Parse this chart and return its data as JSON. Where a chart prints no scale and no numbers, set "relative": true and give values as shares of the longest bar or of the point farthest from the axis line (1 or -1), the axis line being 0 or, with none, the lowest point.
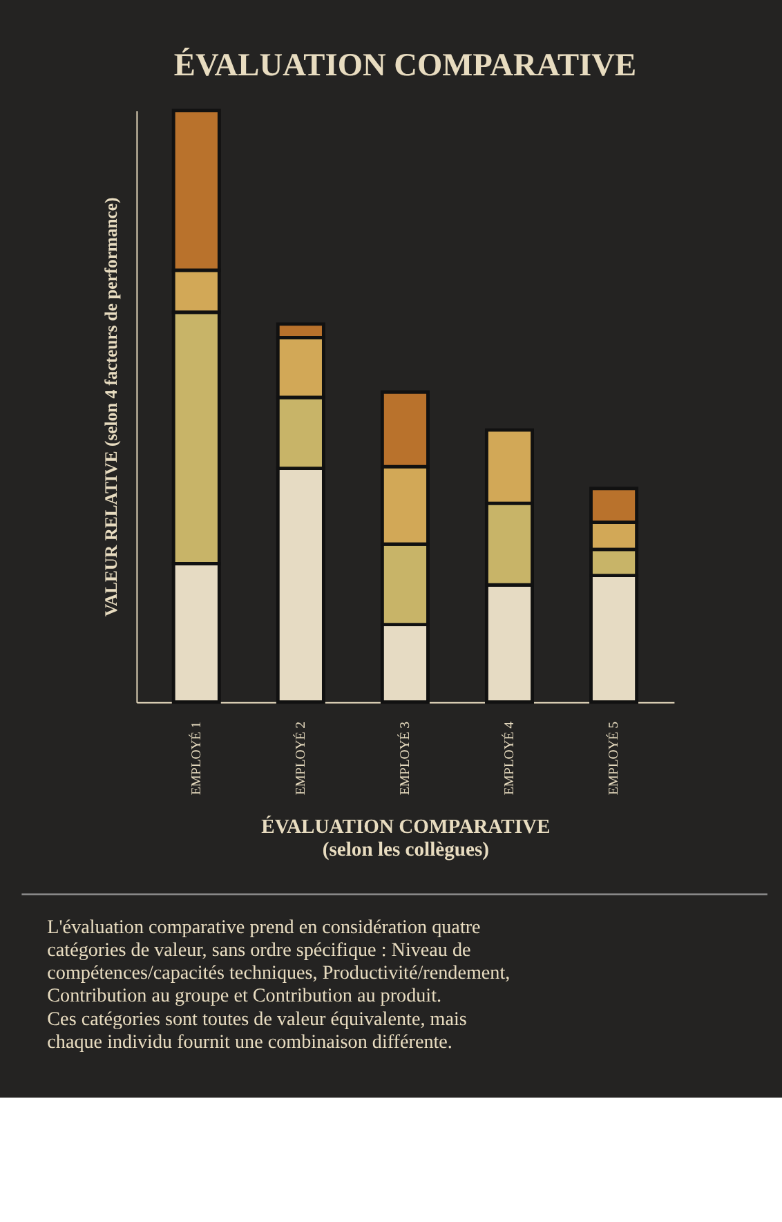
{
  "chart_data": {
    "type": "bar",
    "title": "ÉVALUATION COMPARATIVE",
    "xlabel": "ÉVALUATION COMPARATIVE\n(selon les collègues)",
    "ylabel": "VALEUR RELATIVE (selon 4 facteurs de performance)",
    "categories": [
      "EMPLOYÉ 1",
      "EMPLOYÉ 2",
      "EMPLOYÉ 3",
      "EMPLOYÉ 4",
      "EMPLOYÉ 5"
    ],
    "stacked": true,
    "relative": true,
    "grid": false,
    "series": [
      {
        "color": "#e6dbc3",
        "values": [
          0.234,
          0.395,
          0.131,
          0.198,
          0.214
        ]
      },
      {
        "color": "#c8b468",
        "values": [
          0.425,
          0.12,
          0.136,
          0.138,
          0.044
        ]
      },
      {
        "color": "#d2a857",
        "values": [
          0.071,
          0.101,
          0.131,
          0.124,
          0.046
        ]
      },
      {
        "color": "#b9722c",
        "values": [
          0.27,
          0.023,
          0.126,
          null,
          0.057
        ]
      }
    ],
    "annotations": [
      "L'évaluation comparative prend en considération quatre catégories de valeur, sans ordre spécifique : Niveau de compétences/capacités techniques, Productivité/rendement, Contribution au groupe et Contribution au produit.",
      "Ces catégories sont toutes de valeur équivalente, mais chaque individu fournit une combinaison différente."
    ]
  }
}
